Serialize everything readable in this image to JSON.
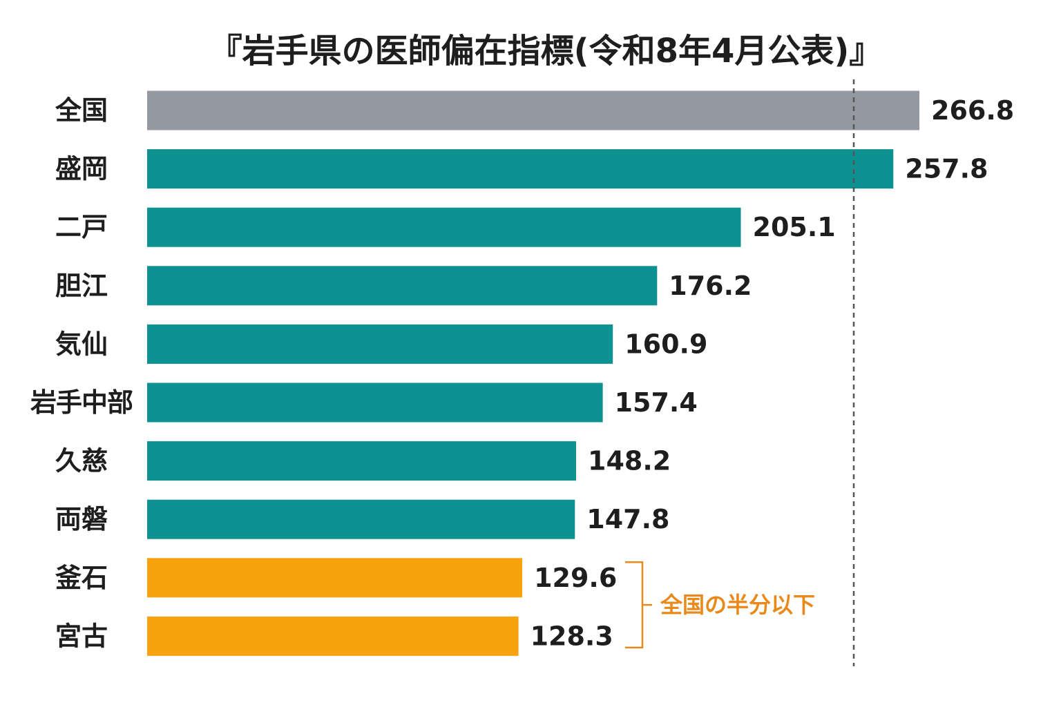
{
  "chart_data": {
    "type": "bar",
    "orientation": "horizontal",
    "title": "『岩手県の医師偏在指標(令和8年4月公表)』",
    "categories": [
      "全国",
      "盛岡",
      "二戸",
      "胆江",
      "気仙",
      "岩手中部",
      "久慈",
      "両磐",
      "釜石",
      "宮古"
    ],
    "values": [
      266.8,
      257.8,
      205.1,
      176.2,
      160.9,
      157.4,
      148.2,
      147.8,
      129.6,
      128.3
    ],
    "value_labels": [
      "266.8",
      "257.8",
      "205.1",
      "176.2",
      "160.9",
      "157.4",
      "148.2",
      "147.8",
      "129.6",
      "128.3"
    ],
    "groups": [
      "national",
      "region",
      "region",
      "region",
      "region",
      "region",
      "region",
      "region",
      "below-half",
      "below-half"
    ],
    "colors": {
      "national": "#9498a0",
      "region": "#0d9191",
      "below-half": "#f8a20e",
      "annotation": "#e8891a",
      "reference_line": "#555555",
      "text": "#1e1e1e"
    },
    "xlim": [
      0,
      266.8
    ],
    "reference_line": {
      "value": 266.8,
      "style": "dashed"
    },
    "annotation": {
      "text": "全国の半分以下",
      "target_categories": [
        "釜石",
        "宮古"
      ]
    },
    "xlabel": "",
    "ylabel": "",
    "grid": false,
    "legend": "none"
  }
}
